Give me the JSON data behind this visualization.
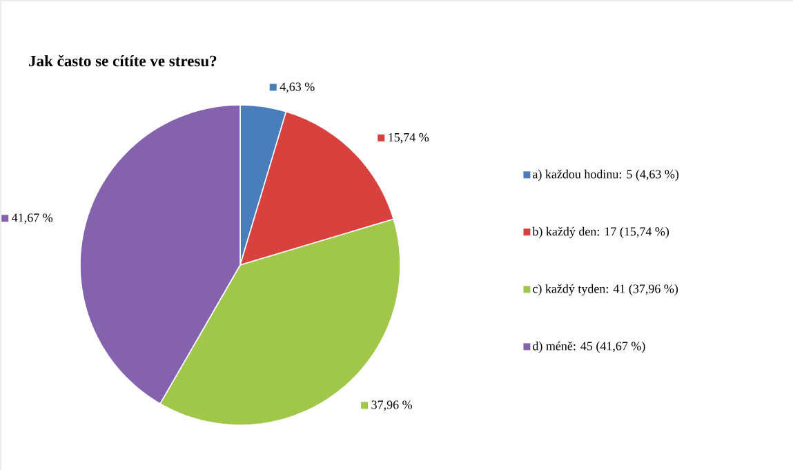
{
  "chart_data": {
    "type": "pie",
    "title": "Jak často se cítíte ve stresu?",
    "categories": [
      "a) každou hodinu: 5 (4,63 %)",
      "b) každý den: 17 (15,74 %)",
      "c) každý tyden: 41 (37,96 %)",
      "d) méně: 45 (41,67 %)"
    ],
    "values": [
      4.63,
      15.74,
      37.96,
      41.67
    ],
    "value_labels": [
      "4,63 %",
      "15,74 %",
      "37,96 %",
      "41,67 %"
    ],
    "colors": [
      "#4a7ebb",
      "#d9413f",
      "#a0c64a",
      "#8462ae"
    ],
    "legend": "right"
  }
}
